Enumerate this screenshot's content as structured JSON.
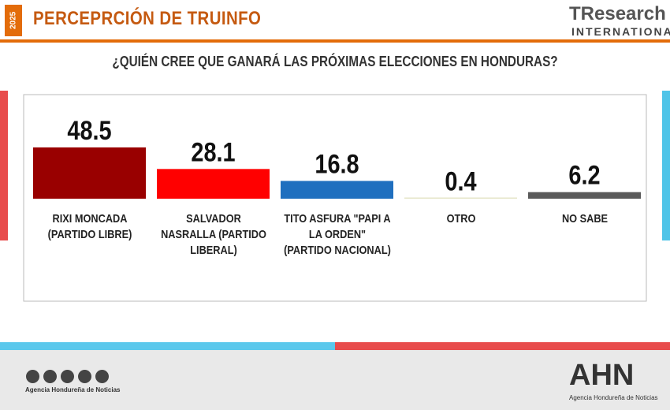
{
  "header": {
    "year": "2025",
    "title": "PERCEPRCIÓN DE TRUINFO",
    "logo": "TResearch",
    "logo_sub": "INTERNATIONAL"
  },
  "chart_data": {
    "type": "bar",
    "title": "¿QUIÉN CREE QUE GANARÁ LAS PRÓXIMAS ELECCIONES EN HONDURAS?",
    "categories": [
      "RIXI MONCADA (PARTIDO LIBRE)",
      "SALVADOR NASRALLA (PARTIDO LIBERAL)",
      "TITO ASFURA \"PAPI A LA ORDEN\" (PARTIDO NACIONAL)",
      "OTRO",
      "NO SABE"
    ],
    "values": [
      48.5,
      28.1,
      16.8,
      0.4,
      6.2
    ],
    "colors": [
      "#990000",
      "#ff0000",
      "#1f6fbf",
      "#e6e6c8",
      "#5a5a5a"
    ]
  },
  "footer": {
    "logo": "AHN",
    "agency": "Agencia Hondureña de Noticias",
    "social_caption": "Agencia Hondureña de Noticias"
  }
}
